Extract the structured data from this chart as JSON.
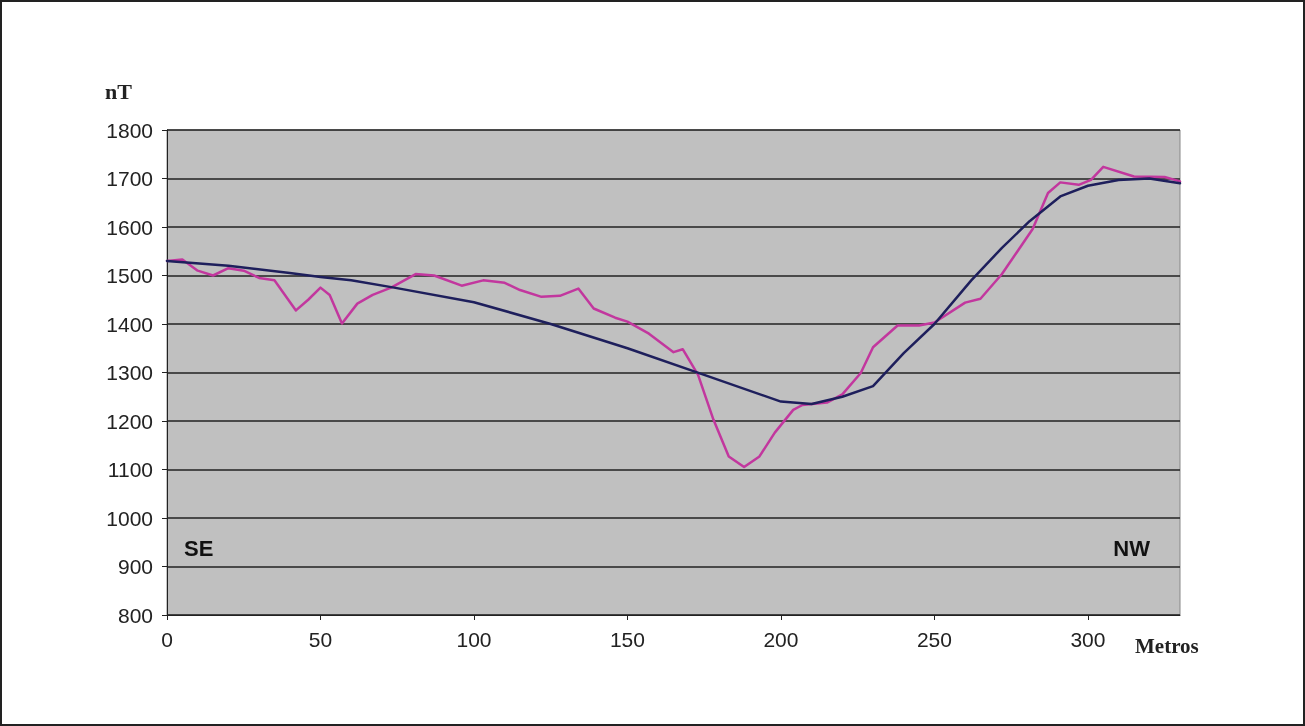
{
  "chart_data": {
    "type": "line",
    "xlabel": "Metros",
    "ylabel": "nT",
    "annotations": [
      "SE",
      "NW"
    ],
    "xlim": [
      0,
      330
    ],
    "xticks": [
      0,
      50,
      100,
      150,
      200,
      250,
      300
    ],
    "ylim": [
      800,
      1800
    ],
    "yticks": [
      800,
      900,
      1000,
      1100,
      1200,
      1300,
      1400,
      1500,
      1600,
      1700,
      1800
    ],
    "grid": "y",
    "marker": "none",
    "line_style": "solid",
    "series": [
      {
        "color": "#c2379e",
        "x": [
          0,
          5,
          10,
          15,
          20,
          25,
          30,
          35,
          42,
          46,
          50,
          53,
          57,
          62,
          67,
          73,
          81,
          87,
          96,
          103,
          110,
          115,
          122,
          128,
          134,
          139,
          146,
          150,
          157,
          165,
          168,
          173,
          178,
          183,
          188,
          193,
          198,
          204,
          207,
          215,
          220,
          226,
          230,
          238,
          245,
          250,
          260,
          265,
          272,
          282,
          287,
          291,
          297,
          301,
          305,
          315,
          325,
          330
        ],
        "values": [
          1530,
          1533,
          1510,
          1500,
          1515,
          1510,
          1495,
          1490,
          1428,
          1450,
          1475,
          1460,
          1401,
          1442,
          1460,
          1475,
          1503,
          1500,
          1479,
          1490,
          1485,
          1470,
          1456,
          1458,
          1473,
          1432,
          1413,
          1405,
          1380,
          1342,
          1348,
          1295,
          1203,
          1127,
          1105,
          1127,
          1176,
          1223,
          1233,
          1238,
          1255,
          1299,
          1352,
          1397,
          1397,
          1403,
          1444,
          1452,
          1503,
          1596,
          1670,
          1692,
          1687,
          1697,
          1724,
          1704,
          1703,
          1694
        ]
      },
      {
        "color": "#1e1f5c",
        "x": [
          0,
          20,
          40,
          50,
          60,
          74,
          100,
          125,
          150,
          175,
          200,
          210,
          220,
          230,
          240,
          250,
          262,
          272,
          281,
          291,
          300,
          310,
          320,
          330
        ],
        "values": [
          1530,
          1520,
          1505,
          1497,
          1490,
          1475,
          1445,
          1400,
          1350,
          1295,
          1240,
          1235,
          1250,
          1272,
          1340,
          1400,
          1490,
          1557,
          1612,
          1663,
          1685,
          1697,
          1700,
          1690
        ]
      }
    ]
  }
}
